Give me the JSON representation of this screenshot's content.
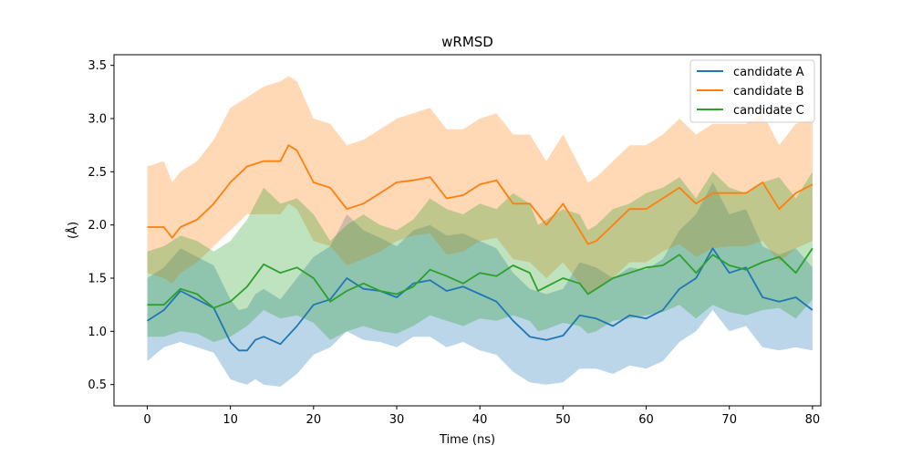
{
  "chart_data": {
    "type": "line",
    "title": "wRMSD",
    "xlabel": "Time (ns)",
    "ylabel": "(Å)",
    "xlim": [
      -4,
      81
    ],
    "ylim": [
      0.3,
      3.6
    ],
    "xticks": [
      0,
      10,
      20,
      30,
      40,
      50,
      60,
      70,
      80
    ],
    "yticks": [
      0.5,
      1.0,
      1.5,
      2.0,
      2.5,
      3.0,
      3.5
    ],
    "grid": false,
    "legend_position": "top-right",
    "series": [
      {
        "name": "candidate A",
        "color": "#1f77b4",
        "x": [
          0,
          2,
          4,
          6,
          8,
          10,
          11,
          12,
          13,
          14,
          16,
          18,
          20,
          22,
          24,
          26,
          28,
          30,
          32,
          34,
          36,
          38,
          40,
          42,
          44,
          46,
          48,
          50,
          52,
          54,
          56,
          58,
          60,
          62,
          64,
          66,
          68,
          70,
          72,
          74,
          76,
          78,
          80
        ],
        "values": [
          1.1,
          1.2,
          1.38,
          1.3,
          1.22,
          0.9,
          0.82,
          0.82,
          0.92,
          0.95,
          0.88,
          1.05,
          1.25,
          1.3,
          1.5,
          1.4,
          1.38,
          1.32,
          1.45,
          1.48,
          1.38,
          1.42,
          1.35,
          1.28,
          1.1,
          0.95,
          0.92,
          0.96,
          1.15,
          1.12,
          1.05,
          1.15,
          1.12,
          1.2,
          1.4,
          1.5,
          1.78,
          1.55,
          1.6,
          1.32,
          1.28,
          1.32,
          1.2
        ],
        "band_low": [
          0.72,
          0.85,
          0.9,
          0.85,
          0.8,
          0.55,
          0.52,
          0.5,
          0.55,
          0.5,
          0.48,
          0.6,
          0.78,
          0.85,
          1.0,
          0.92,
          0.9,
          0.85,
          0.95,
          0.95,
          0.85,
          0.9,
          0.82,
          0.78,
          0.62,
          0.52,
          0.5,
          0.52,
          0.65,
          0.65,
          0.6,
          0.68,
          0.65,
          0.72,
          0.9,
          1.0,
          1.2,
          1.0,
          1.05,
          0.85,
          0.82,
          0.85,
          0.82
        ],
        "band_high": [
          1.5,
          1.6,
          1.78,
          1.7,
          1.62,
          1.3,
          1.2,
          1.22,
          1.35,
          1.4,
          1.3,
          1.5,
          1.7,
          1.8,
          2.1,
          1.95,
          1.88,
          1.8,
          1.95,
          2.0,
          1.9,
          1.92,
          1.85,
          1.78,
          1.55,
          1.4,
          1.35,
          1.4,
          1.65,
          1.6,
          1.5,
          1.6,
          1.58,
          1.68,
          1.95,
          2.1,
          2.4,
          2.1,
          2.15,
          1.8,
          1.72,
          1.78,
          1.6
        ]
      },
      {
        "name": "candidate B",
        "color": "#ff7f0e",
        "x": [
          0,
          2,
          3,
          4,
          6,
          8,
          10,
          12,
          14,
          16,
          17,
          18,
          20,
          22,
          24,
          26,
          28,
          30,
          32,
          34,
          36,
          38,
          40,
          42,
          44,
          46,
          48,
          50,
          52,
          53,
          54,
          56,
          58,
          60,
          62,
          64,
          66,
          68,
          70,
          72,
          74,
          76,
          78,
          80
        ],
        "values": [
          1.98,
          1.98,
          1.88,
          1.98,
          2.05,
          2.2,
          2.4,
          2.55,
          2.6,
          2.6,
          2.75,
          2.7,
          2.4,
          2.35,
          2.15,
          2.2,
          2.3,
          2.4,
          2.42,
          2.45,
          2.25,
          2.28,
          2.38,
          2.42,
          2.2,
          2.2,
          2.0,
          2.2,
          1.95,
          1.82,
          1.85,
          2.0,
          2.15,
          2.15,
          2.25,
          2.35,
          2.2,
          2.3,
          2.3,
          2.3,
          2.4,
          2.15,
          2.3,
          2.38
        ],
        "band_low": [
          1.55,
          1.5,
          1.45,
          1.55,
          1.65,
          1.8,
          1.95,
          2.1,
          2.1,
          2.1,
          2.2,
          2.15,
          1.85,
          1.8,
          1.62,
          1.68,
          1.75,
          1.85,
          1.9,
          1.92,
          1.72,
          1.75,
          1.85,
          1.88,
          1.68,
          1.65,
          1.5,
          1.65,
          1.45,
          1.35,
          1.4,
          1.5,
          1.65,
          1.65,
          1.75,
          1.82,
          1.7,
          1.78,
          1.8,
          1.8,
          1.85,
          1.65,
          1.78,
          1.85
        ],
        "band_high": [
          2.55,
          2.6,
          2.4,
          2.5,
          2.6,
          2.8,
          3.1,
          3.2,
          3.3,
          3.35,
          3.4,
          3.35,
          3.0,
          2.95,
          2.75,
          2.8,
          2.9,
          3.0,
          3.05,
          3.1,
          2.9,
          2.9,
          3.0,
          3.05,
          2.85,
          2.85,
          2.6,
          2.85,
          2.55,
          2.4,
          2.45,
          2.6,
          2.75,
          2.75,
          2.85,
          3.0,
          2.85,
          2.95,
          2.95,
          2.95,
          3.05,
          2.75,
          2.95,
          3.0
        ]
      },
      {
        "name": "candidate C",
        "color": "#2ca02c",
        "x": [
          0,
          2,
          4,
          6,
          8,
          10,
          12,
          14,
          16,
          18,
          20,
          22,
          24,
          26,
          28,
          30,
          32,
          34,
          36,
          38,
          40,
          42,
          44,
          46,
          47,
          48,
          50,
          52,
          53,
          54,
          56,
          58,
          60,
          62,
          64,
          66,
          68,
          70,
          72,
          74,
          76,
          78,
          80
        ],
        "values": [
          1.25,
          1.25,
          1.4,
          1.35,
          1.22,
          1.28,
          1.42,
          1.63,
          1.55,
          1.6,
          1.5,
          1.28,
          1.38,
          1.45,
          1.38,
          1.35,
          1.42,
          1.58,
          1.52,
          1.45,
          1.55,
          1.52,
          1.62,
          1.55,
          1.38,
          1.42,
          1.5,
          1.45,
          1.35,
          1.4,
          1.5,
          1.55,
          1.6,
          1.62,
          1.72,
          1.55,
          1.72,
          1.62,
          1.58,
          1.65,
          1.7,
          1.55,
          1.78
        ],
        "band_low": [
          0.95,
          0.95,
          1.0,
          0.98,
          0.9,
          0.95,
          1.05,
          1.2,
          1.12,
          1.15,
          1.08,
          0.92,
          1.0,
          1.05,
          1.0,
          0.98,
          1.05,
          1.15,
          1.1,
          1.05,
          1.12,
          1.1,
          1.15,
          1.1,
          1.0,
          1.02,
          1.08,
          1.05,
          0.98,
          1.0,
          1.1,
          1.12,
          1.15,
          1.18,
          1.25,
          1.12,
          1.25,
          1.18,
          1.15,
          1.2,
          1.22,
          1.12,
          1.3
        ],
        "band_high": [
          1.75,
          1.8,
          1.9,
          1.85,
          1.75,
          1.85,
          2.05,
          2.35,
          2.2,
          2.25,
          2.1,
          1.85,
          2.0,
          2.1,
          2.0,
          1.95,
          2.05,
          2.25,
          2.15,
          2.1,
          2.2,
          2.15,
          2.3,
          2.2,
          2.0,
          2.05,
          2.15,
          2.1,
          1.95,
          2.0,
          2.15,
          2.2,
          2.3,
          2.35,
          2.45,
          2.25,
          2.5,
          2.35,
          2.3,
          2.4,
          2.45,
          2.25,
          2.5
        ]
      }
    ]
  }
}
